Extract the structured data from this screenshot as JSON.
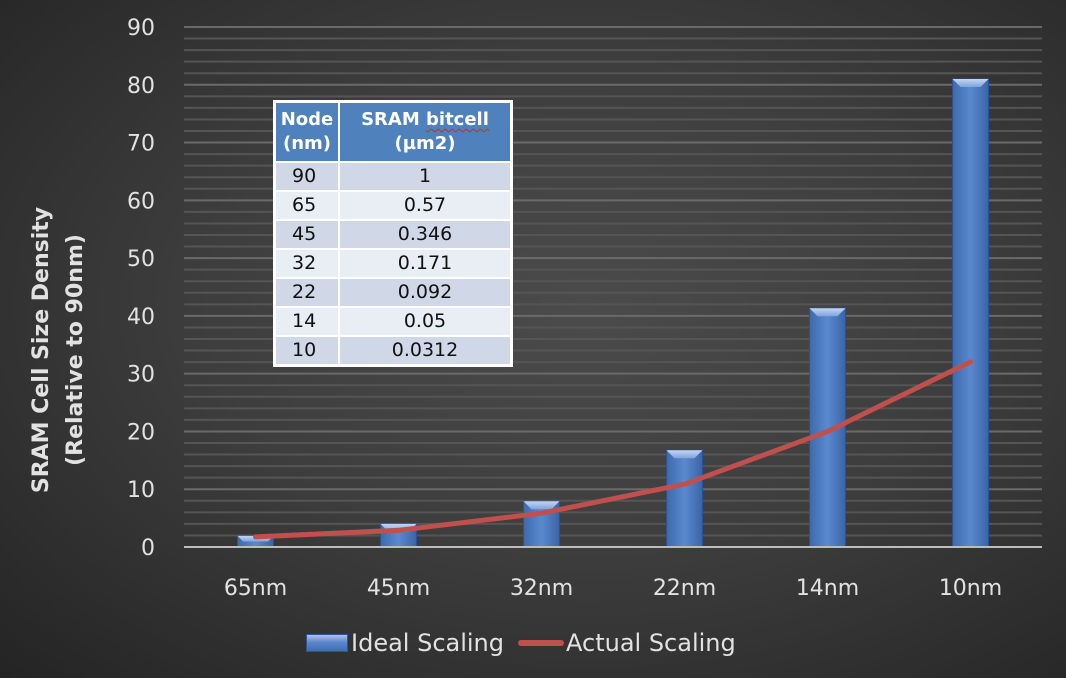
{
  "chart_data": {
    "type": "bar",
    "title": "",
    "xlabel": "",
    "ylabel": "SRAM Cell Size Density (Relative to 90nm)",
    "ylabel_lines": [
      "SRAM Cell Size Density",
      "(Relative to 90nm)"
    ],
    "ylim": [
      0,
      90
    ],
    "yticks": [
      0,
      10,
      20,
      30,
      40,
      50,
      60,
      70,
      80,
      90
    ],
    "grid": true,
    "minor_grid_step": 2,
    "legend_position": "bottom",
    "categories": [
      "65nm",
      "45nm",
      "32nm",
      "22nm",
      "14nm",
      "10nm"
    ],
    "series": [
      {
        "name": "Ideal Scaling",
        "kind": "bar",
        "color": "#4f81bd",
        "values": [
          1.92,
          4.0,
          7.91,
          16.74,
          41.33,
          81.0
        ]
      },
      {
        "name": "Actual Scaling",
        "kind": "line",
        "color": "#c0504d",
        "values": [
          1.75,
          2.89,
          5.85,
          10.87,
          20.0,
          32.05
        ]
      }
    ],
    "inset_table": {
      "headers": [
        [
          "Node",
          "(nm)"
        ],
        [
          "SRAM bitcell",
          "(µm2)"
        ]
      ],
      "rows": [
        [
          "90",
          "1"
        ],
        [
          "65",
          "0.57"
        ],
        [
          "45",
          "0.346"
        ],
        [
          "32",
          "0.171"
        ],
        [
          "22",
          "0.092"
        ],
        [
          "14",
          "0.05"
        ],
        [
          "10",
          "0.0312"
        ]
      ]
    }
  },
  "legend": {
    "ideal_label": "Ideal Scaling",
    "actual_label": "Actual Scaling"
  },
  "table": {
    "h1_line1": "Node",
    "h1_line2": "(nm)",
    "h2_line1_a": "SRAM ",
    "h2_line1_b": "bitcell",
    "h2_line2": "(µm2)",
    "rows": [
      {
        "node": "90",
        "val": "1"
      },
      {
        "node": "65",
        "val": "0.57"
      },
      {
        "node": "45",
        "val": "0.346"
      },
      {
        "node": "32",
        "val": "0.171"
      },
      {
        "node": "22",
        "val": "0.092"
      },
      {
        "node": "14",
        "val": "0.05"
      },
      {
        "node": "10",
        "val": "0.0312"
      }
    ]
  }
}
